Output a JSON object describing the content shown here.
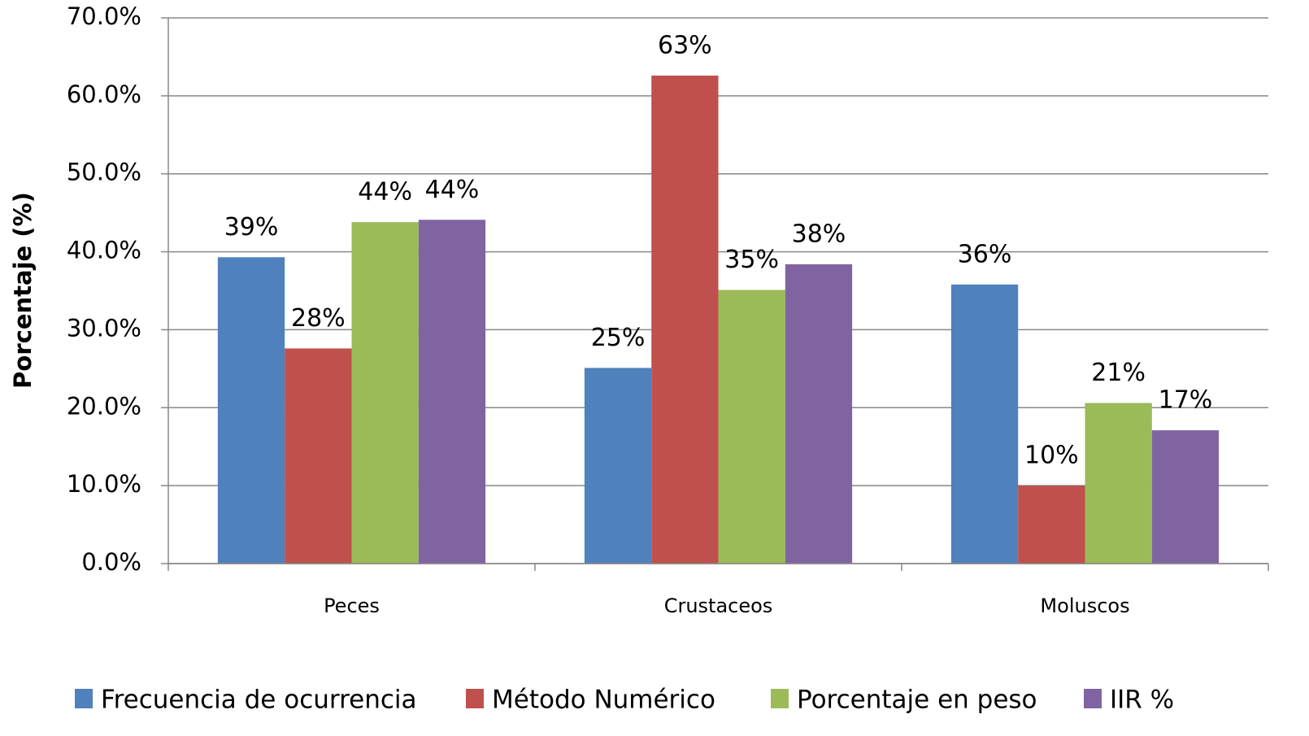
{
  "chart_data": {
    "type": "bar",
    "y_label": "Porcentaje (%)",
    "categories": [
      "Peces",
      "Crustaceos",
      "Moluscos"
    ],
    "series": [
      {
        "name": "Frecuencia de ocurrencia",
        "color": "#4f81bd",
        "values": [
          39.3,
          25.1,
          35.8
        ],
        "value_labels": [
          "39%",
          "25%",
          "36%"
        ]
      },
      {
        "name": "Método Numérico",
        "color": "#c0504d",
        "values": [
          27.6,
          62.6,
          10.0
        ],
        "value_labels": [
          "28%",
          "63%",
          "10%"
        ]
      },
      {
        "name": "Porcentaje en peso",
        "color": "#9bbb59",
        "values": [
          43.8,
          35.1,
          20.6
        ],
        "value_labels": [
          "44%",
          "35%",
          "21%"
        ]
      },
      {
        "name": "IIR %",
        "color": "#8064a2",
        "values": [
          44.1,
          38.4,
          17.1
        ],
        "value_labels": [
          "44%",
          "38%",
          "17%"
        ]
      }
    ],
    "ylim": [
      0,
      70
    ],
    "yticks": [
      {
        "value": 0,
        "label": "0.0%"
      },
      {
        "value": 10,
        "label": "10.0%"
      },
      {
        "value": 20,
        "label": "20.0%"
      },
      {
        "value": 30,
        "label": "30.0%"
      },
      {
        "value": 40,
        "label": "40.0%"
      },
      {
        "value": 50,
        "label": "50.0%"
      },
      {
        "value": 60,
        "label": "60.0%"
      },
      {
        "value": 70,
        "label": "70.0%"
      }
    ],
    "grid": true,
    "legend": "bottom"
  }
}
